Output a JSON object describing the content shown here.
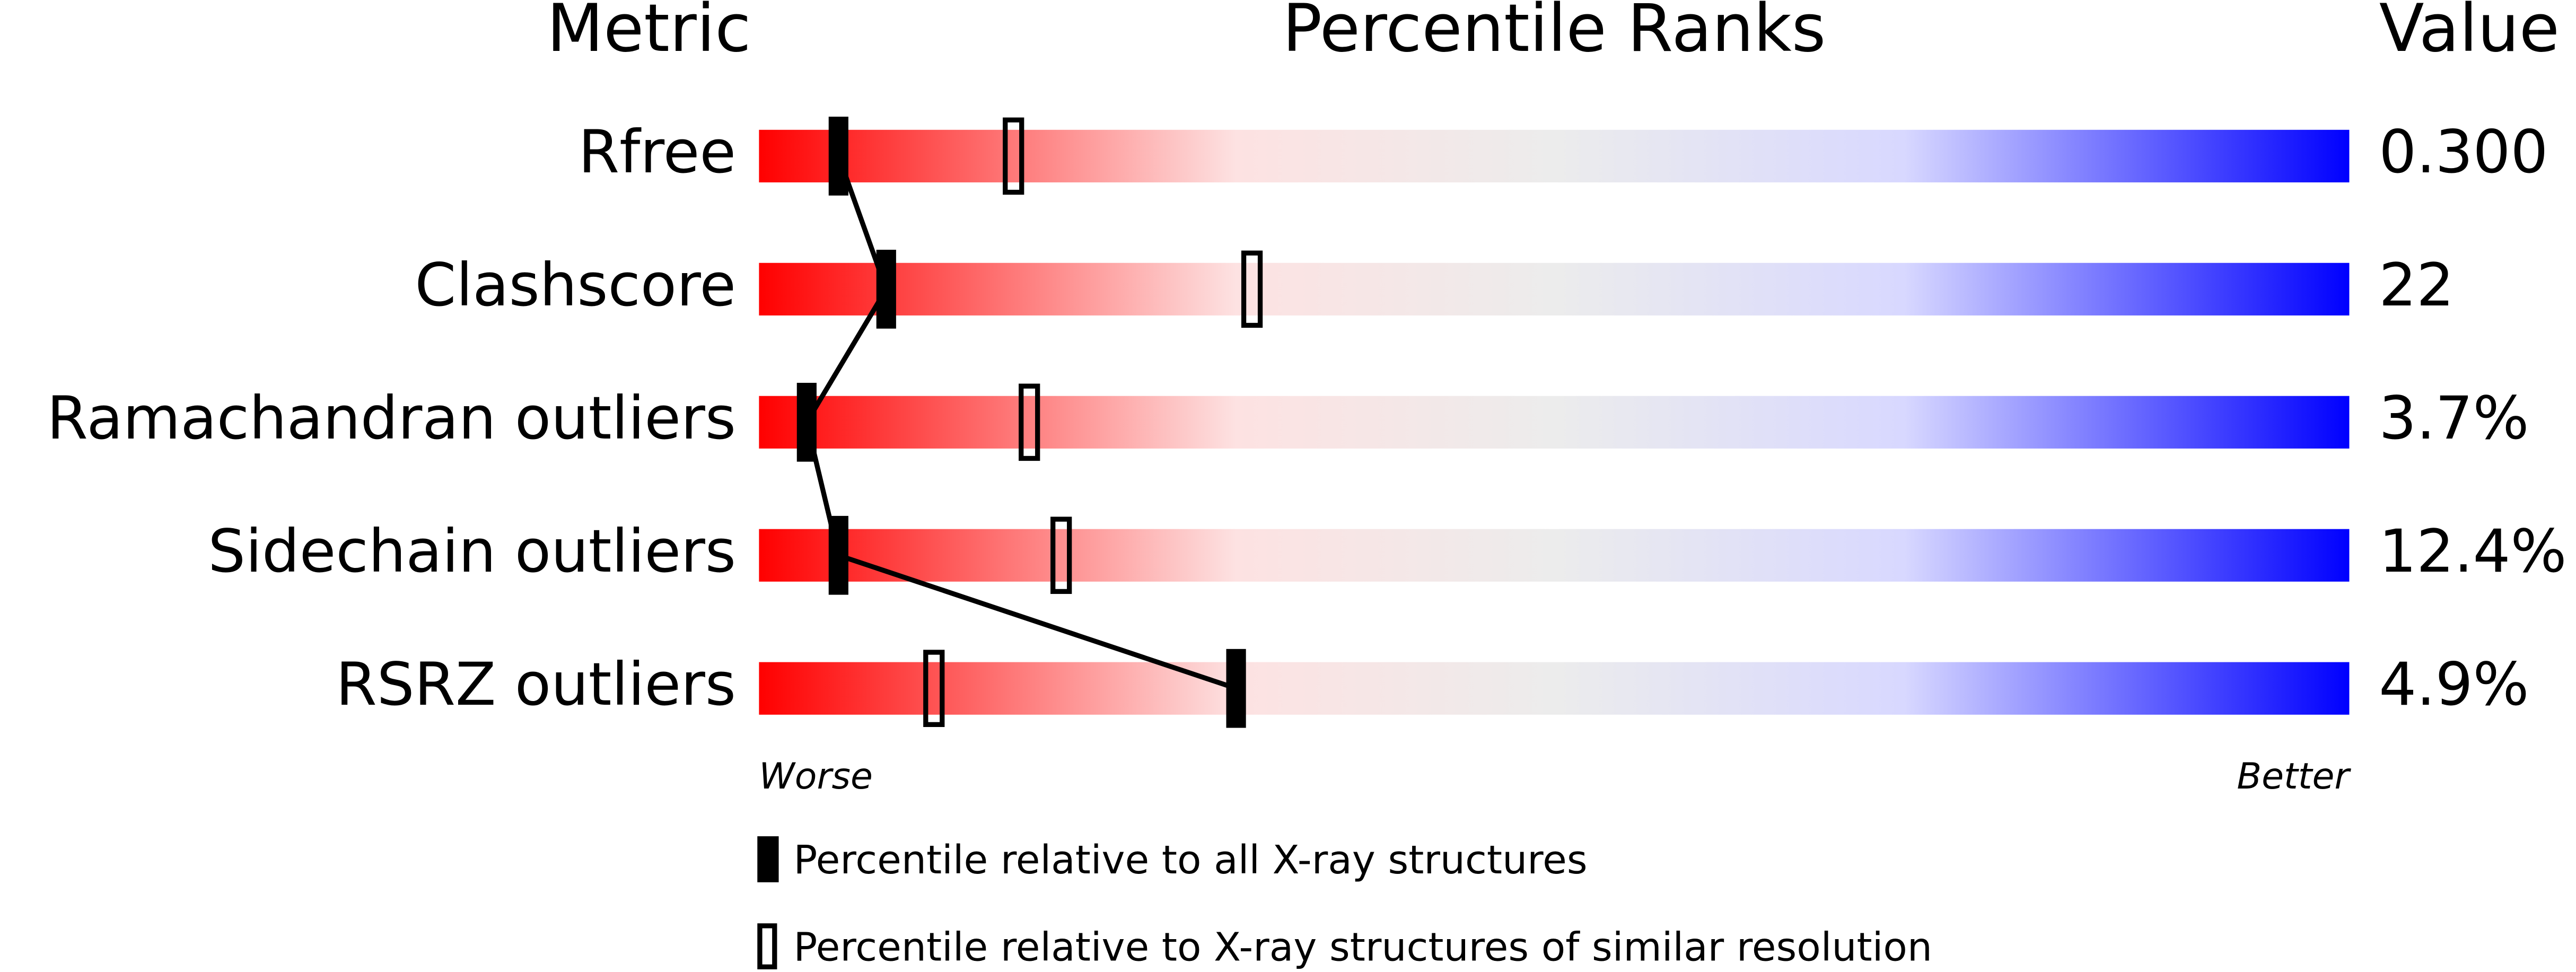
{
  "chart_data": {
    "type": "slider",
    "category_header": "Metric",
    "title": "Percentile Ranks",
    "value_header": "Value",
    "categories": [
      "Rfree",
      "Clashscore",
      "Ramachandran outliers",
      "Sidechain outliers",
      "RSRZ outliers"
    ],
    "metric_values": [
      "0.300",
      "22",
      "3.7%",
      "12.4%",
      "4.9%"
    ],
    "xlim": [
      0,
      100
    ],
    "worse_label": "Worse",
    "better_label": "Better",
    "series": [
      {
        "name": "Percentile relative to all X-ray structures",
        "color": "#000000",
        "marker": "filled",
        "connect": true,
        "values": [
          5,
          8,
          3,
          5,
          30
        ]
      },
      {
        "name": "Percentile relative to X-ray structures of similar resolution",
        "color": "#000000",
        "marker": "open",
        "connect": false,
        "values": [
          16,
          31,
          17,
          19,
          11
        ]
      }
    ]
  }
}
